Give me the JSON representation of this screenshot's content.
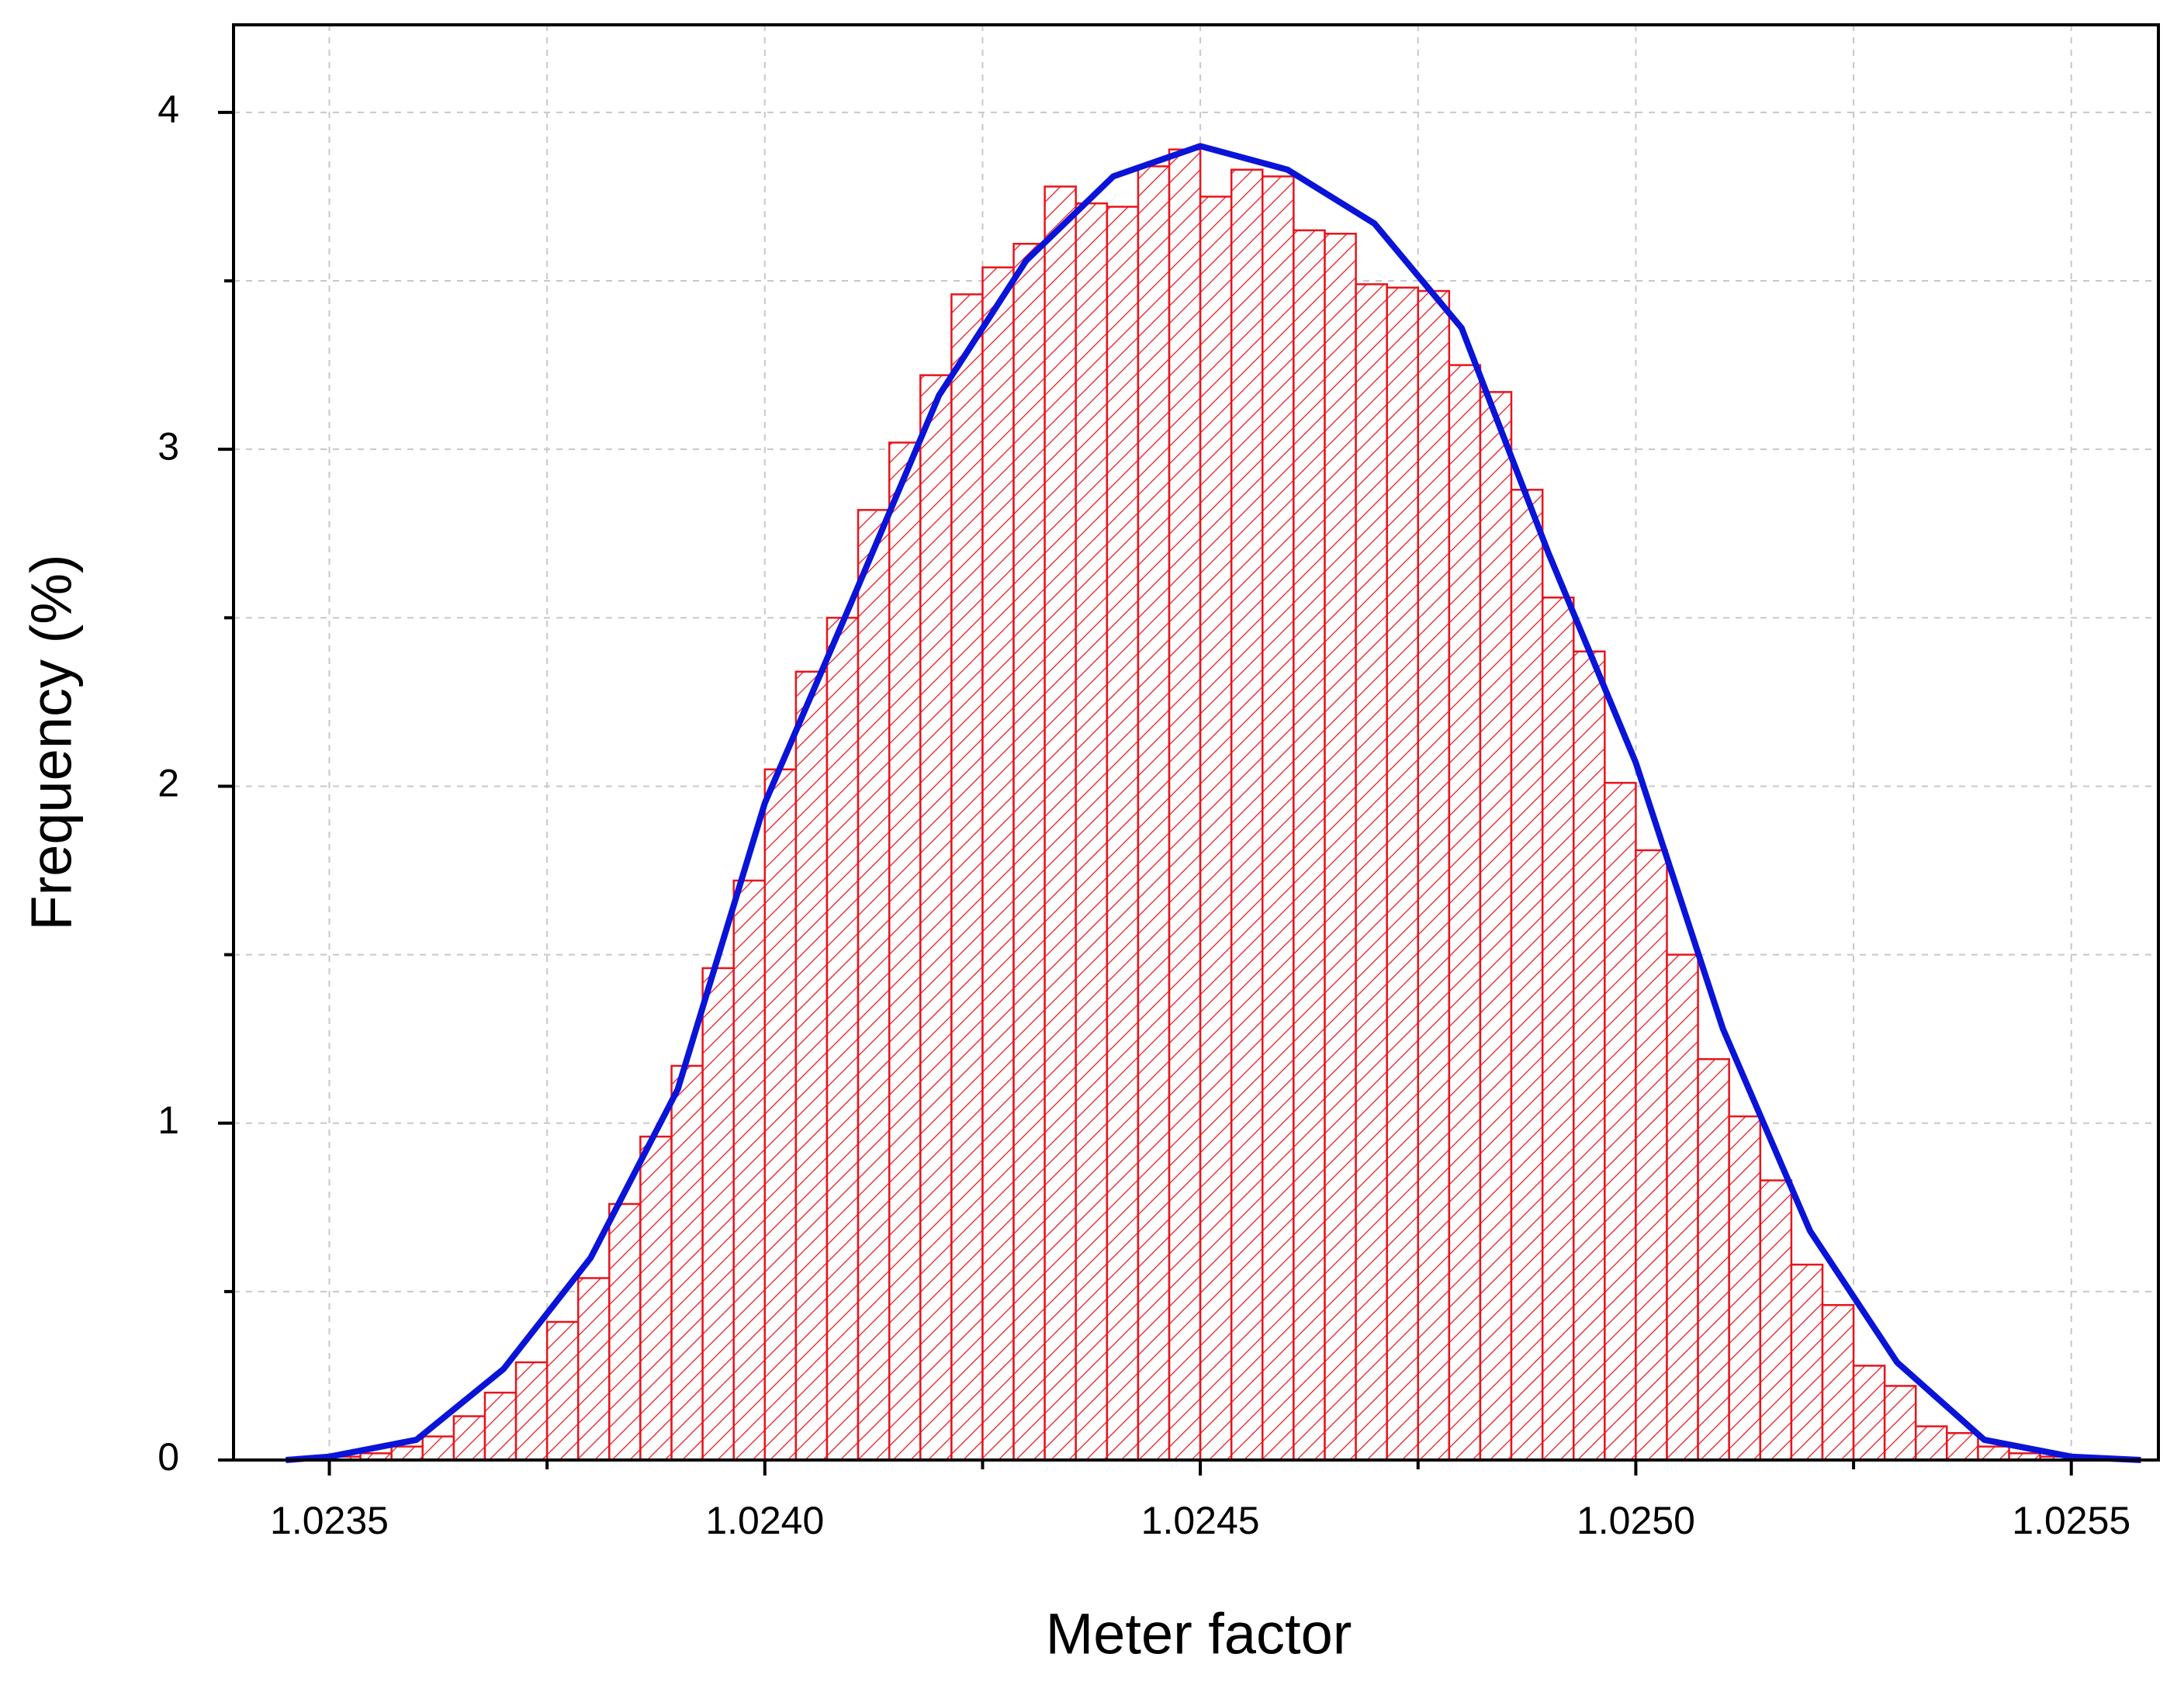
{
  "chart_data": {
    "type": "histogram",
    "xlabel": "Meter factor",
    "ylabel": "Frequency (%)",
    "bins": [
      1.0235,
      1.0235357,
      1.0235714,
      1.0236071,
      1.0236429,
      1.0236786,
      1.0237143,
      1.02375,
      1.0237857,
      1.0238214,
      1.0238571,
      1.0238929,
      1.0239286,
      1.0239643,
      1.024,
      1.0240357,
      1.0240714,
      1.0241071,
      1.0241429,
      1.0241786,
      1.0242143,
      1.02425,
      1.0242857,
      1.0243214,
      1.0243571,
      1.0243929,
      1.0244286,
      1.0244643,
      1.0245,
      1.0245357,
      1.0245714,
      1.0246071,
      1.0246429,
      1.0246786,
      1.0247143,
      1.02475,
      1.0247857,
      1.0248214,
      1.0248571,
      1.0248929,
      1.0249286,
      1.0249643,
      1.025,
      1.0250357,
      1.0250714,
      1.0251071,
      1.0251429,
      1.0251786,
      1.0252143,
      1.02525,
      1.0252857,
      1.0253214,
      1.0253571,
      1.0253929,
      1.0254286,
      1.0254643,
      1.0255
    ],
    "values": [
      0.01,
      0.02,
      0.04,
      0.07,
      0.13,
      0.2,
      0.29,
      0.41,
      0.54,
      0.76,
      0.96,
      1.17,
      1.46,
      1.72,
      2.05,
      2.34,
      2.5,
      2.82,
      3.02,
      3.22,
      3.46,
      3.54,
      3.61,
      3.78,
      3.73,
      3.72,
      3.84,
      3.89,
      3.75,
      3.83,
      3.81,
      3.65,
      3.64,
      3.49,
      3.48,
      3.47,
      3.25,
      3.17,
      2.88,
      2.56,
      2.4,
      2.01,
      1.81,
      1.5,
      1.19,
      1.02,
      0.83,
      0.58,
      0.46,
      0.28,
      0.22,
      0.1,
      0.08,
      0.04,
      0.02,
      0.01
    ],
    "color": "#e8141c",
    "hatch": true,
    "fit": {
      "color": "#0a14d8",
      "x": [
        1.02345,
        1.0235,
        1.0236,
        1.0237,
        1.0238,
        1.0239,
        1.024,
        1.0241,
        1.0242,
        1.0243,
        1.0244,
        1.0245,
        1.0246,
        1.0247,
        1.0248,
        1.0249,
        1.025,
        1.0251,
        1.0252,
        1.0253,
        1.0254,
        1.0255,
        1.02558
      ],
      "values": [
        0,
        0.01,
        0.06,
        0.27,
        0.6,
        1.1,
        1.95,
        2.55,
        3.16,
        3.56,
        3.81,
        3.9,
        3.83,
        3.67,
        3.36,
        2.69,
        2.07,
        1.28,
        0.68,
        0.29,
        0.06,
        0.01,
        0
      ]
    },
    "xlim": [
      1.02339,
      1.0256
    ],
    "ylim": [
      0,
      4.26
    ],
    "xticks": [
      1.0235,
      {
        "value": 1.024,
        "label": "1.0240"
      },
      1.0245,
      {
        "value": 1.025,
        "label": "1.0250"
      },
      1.0255
    ],
    "xminorticks": [
      1.02375,
      1.02425,
      1.02475,
      1.02525
    ],
    "yticks": [
      0,
      1,
      2,
      3,
      4
    ],
    "yminorticks": [
      0.5,
      1.5,
      2.5,
      3.5
    ],
    "grid": true
  }
}
